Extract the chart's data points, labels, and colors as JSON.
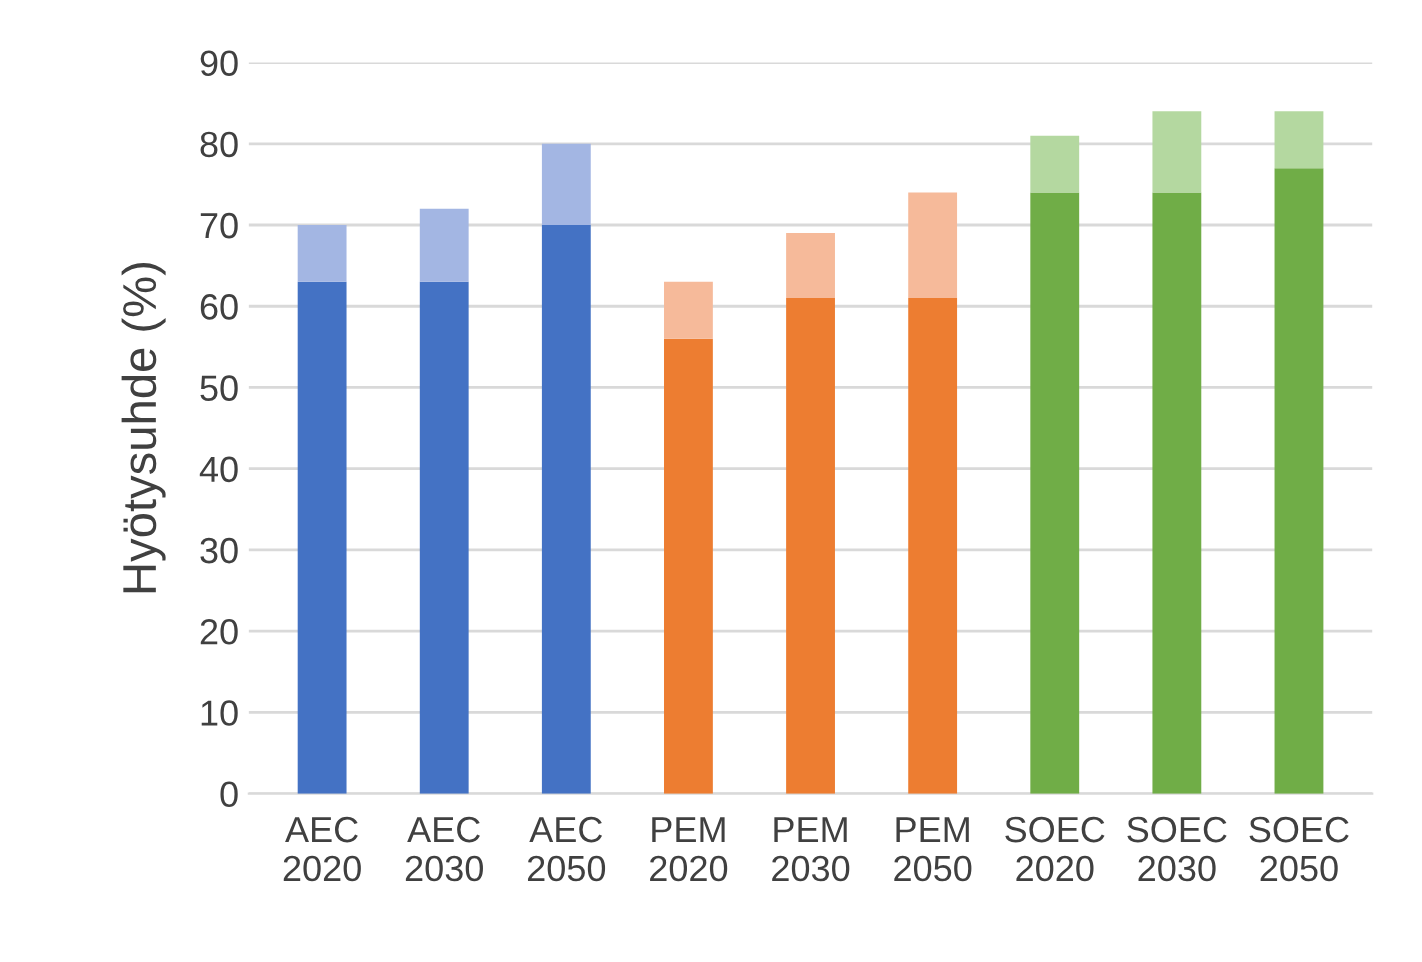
{
  "chart_data": {
    "type": "bar",
    "stacked": true,
    "ylabel": "Hyötysuhde (%)",
    "categories": [
      "AEC\n2020",
      "AEC\n2030",
      "AEC\n2050",
      "PEM\n2020",
      "PEM\n2030",
      "PEM\n2050",
      "SOEC\n2020",
      "SOEC\n2030",
      "SOEC\n2050"
    ],
    "series": [
      {
        "colors": [
          "#4472c4",
          "#4472c4",
          "#4472c4",
          "#ed7d31",
          "#ed7d31",
          "#ed7d31",
          "#70ad47",
          "#70ad47",
          "#70ad47"
        ],
        "values": [
          63,
          63,
          70,
          56,
          61,
          61,
          74,
          74,
          77
        ]
      },
      {
        "colors": [
          "#a3b6e3",
          "#a3b6e3",
          "#a3b6e3",
          "#f6ba9a",
          "#f6ba9a",
          "#f6ba9a",
          "#b4d8a0",
          "#b4d8a0",
          "#b4d8a0"
        ],
        "values": [
          7,
          9,
          10,
          7,
          8,
          13,
          7,
          10,
          7
        ]
      }
    ],
    "ylim": [
      0,
      90
    ],
    "yticks": [
      0,
      10,
      20,
      30,
      40,
      50,
      60,
      70,
      80,
      90
    ],
    "grid": "y",
    "legend": false
  }
}
